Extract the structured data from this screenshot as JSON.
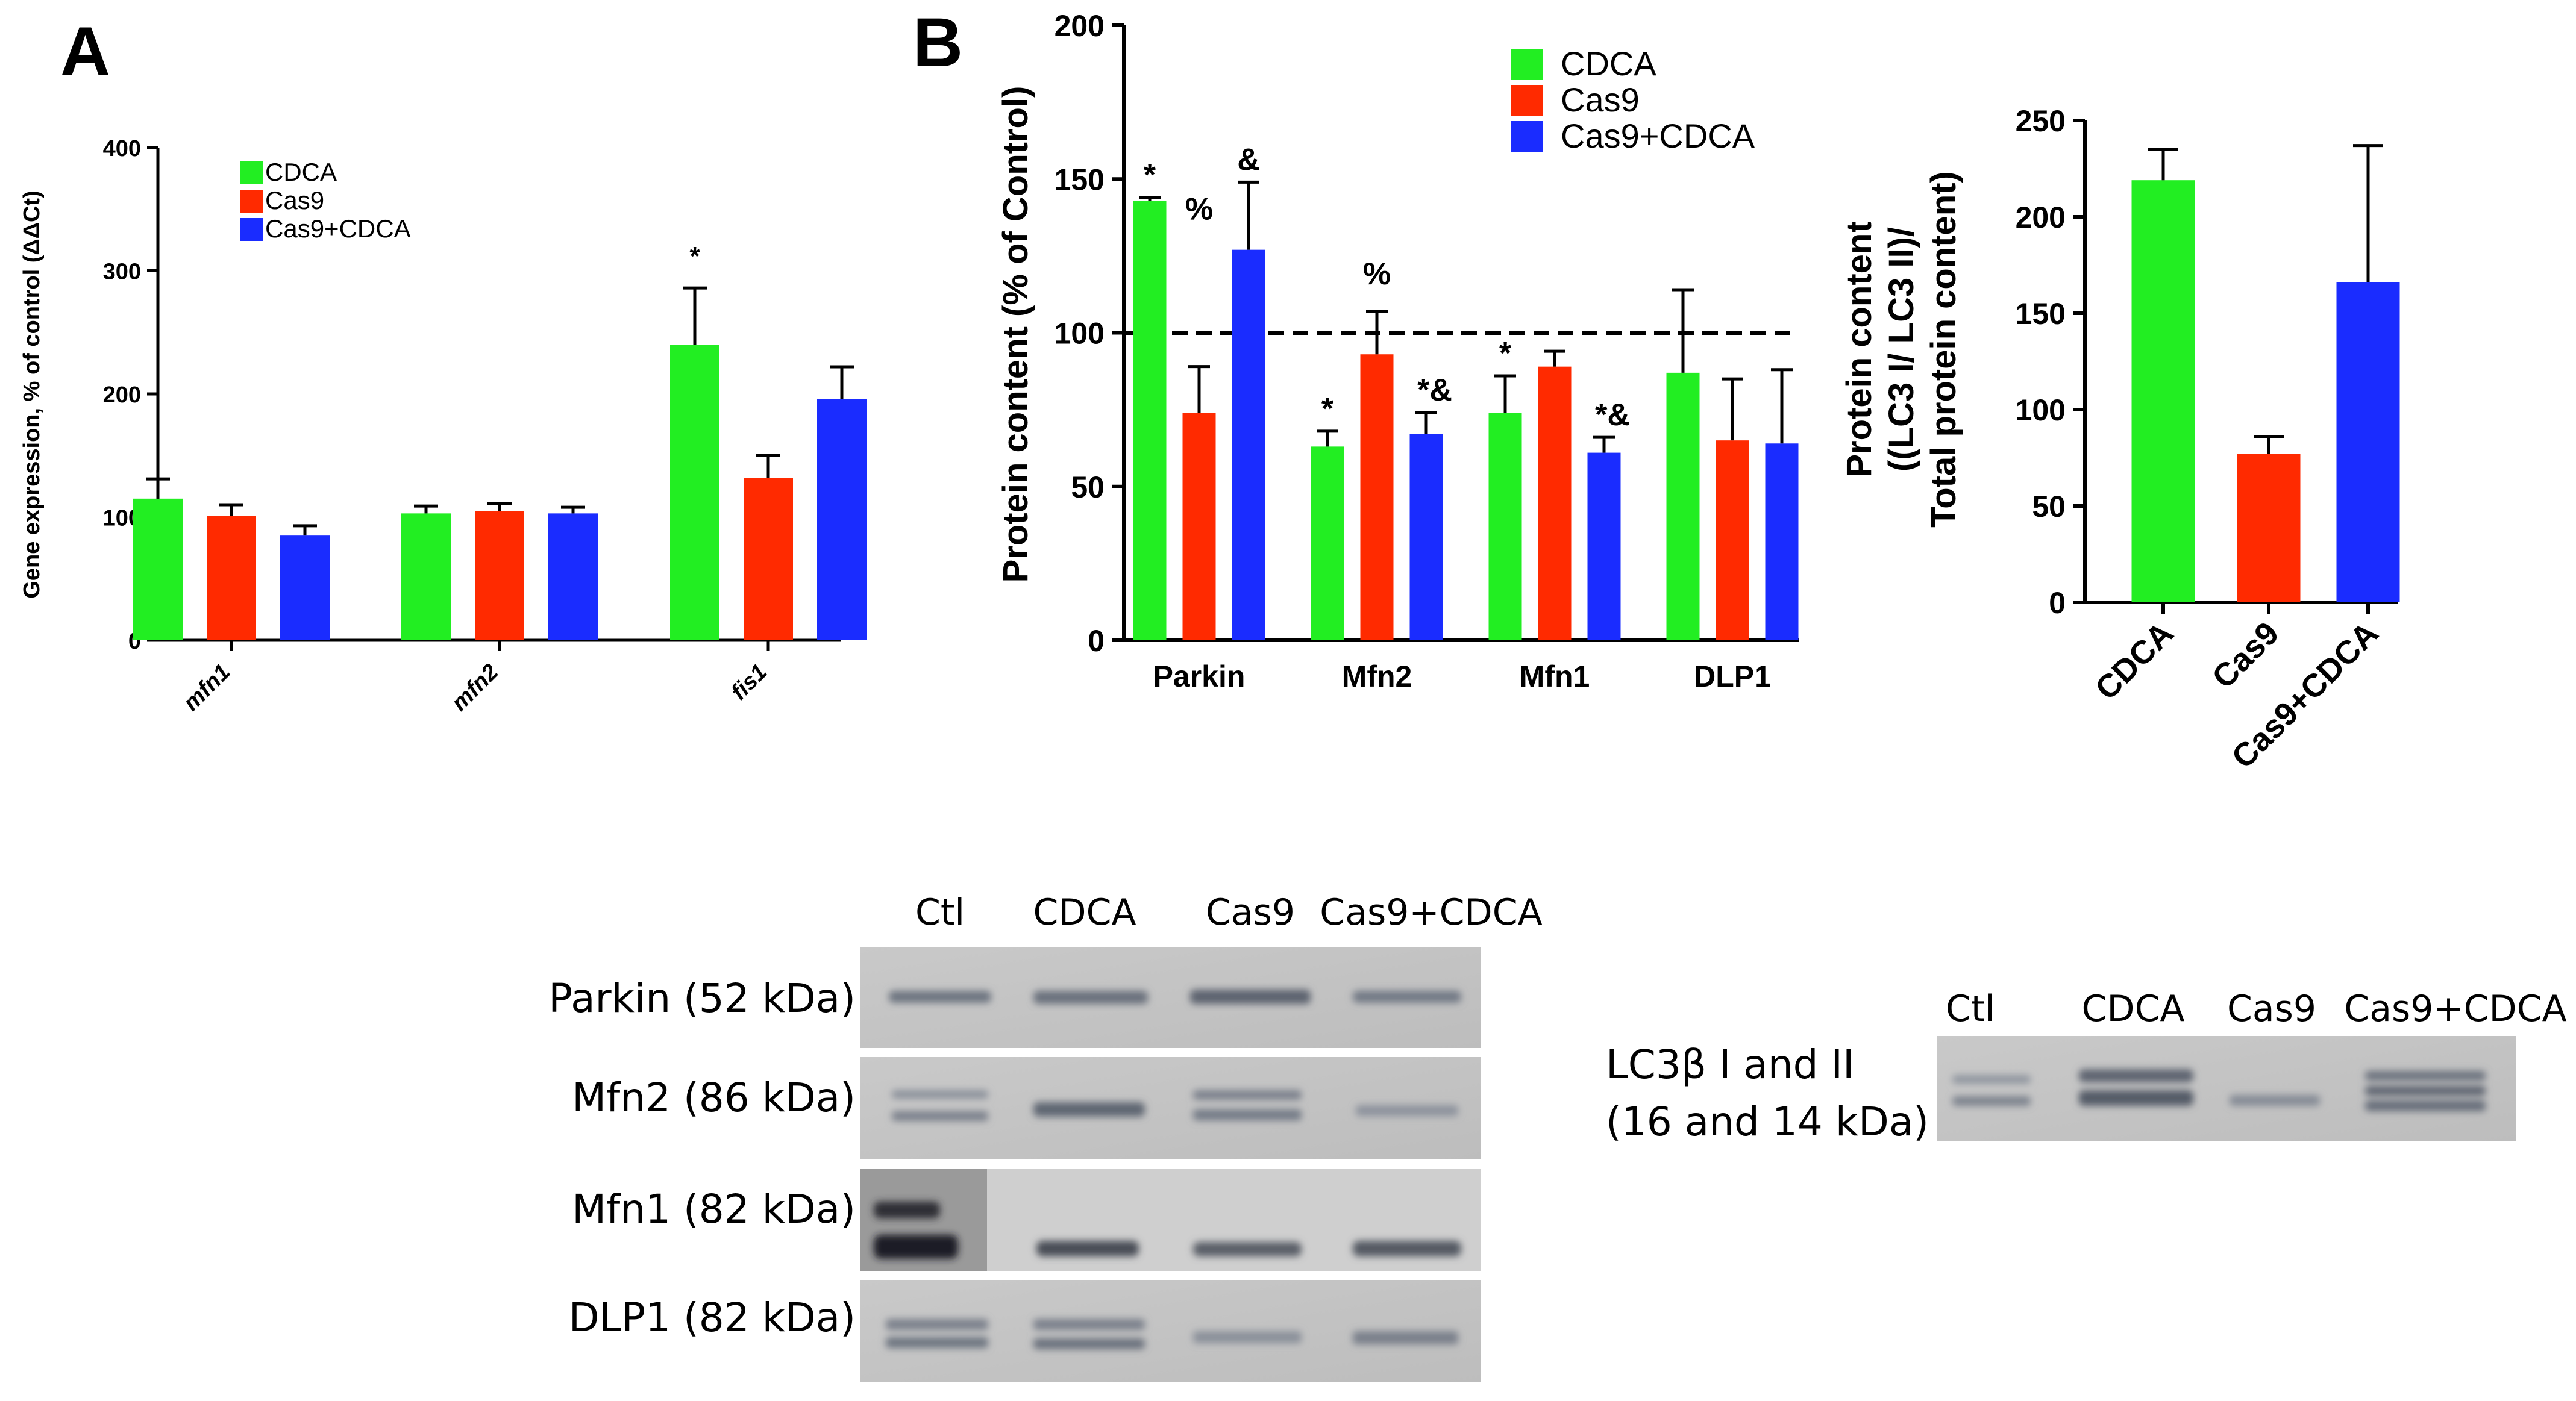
{
  "colors": {
    "CDCA": "#22ee22",
    "Cas9": "#ff2a00",
    "Cas9+CDCA": "#1a2cff"
  },
  "panel_labels": {
    "a": "A",
    "b": "B"
  },
  "chart_data": [
    {
      "id": "chartA",
      "type": "bar",
      "title": "",
      "ylabel": "Gene expression, % of control (ΔΔCt)",
      "xlabel": "",
      "ylim": [
        0,
        400
      ],
      "yticks": [
        0,
        100,
        200,
        300,
        400
      ],
      "categories": [
        "mfn1",
        "mfn2",
        "fis1"
      ],
      "series": [
        {
          "name": "CDCA",
          "values": [
            115,
            103,
            240
          ],
          "errors": [
            16,
            6,
            46
          ]
        },
        {
          "name": "Cas9",
          "values": [
            101,
            105,
            132
          ],
          "errors": [
            9,
            6,
            18
          ]
        },
        {
          "name": "Cas9+CDCA",
          "values": [
            85,
            103,
            196
          ],
          "errors": [
            8,
            5,
            26
          ]
        }
      ],
      "annotations": [
        {
          "category": "fis1",
          "series": "CDCA",
          "text": "*"
        }
      ],
      "legend": [
        "CDCA",
        "Cas9",
        "Cas9+CDCA"
      ],
      "legend_position": "top-left"
    },
    {
      "id": "chartB",
      "type": "bar",
      "title": "",
      "ylabel": "Protein content (% of Control)",
      "xlabel": "",
      "ylim": [
        0,
        200
      ],
      "yticks": [
        0,
        50,
        100,
        150,
        200
      ],
      "reference_line": 100,
      "categories": [
        "Parkin",
        "Mfn2",
        "Mfn1",
        "DLP1"
      ],
      "series": [
        {
          "name": "CDCA",
          "values": [
            143,
            63,
            74,
            87
          ],
          "errors": [
            1,
            5,
            12,
            27
          ]
        },
        {
          "name": "Cas9",
          "values": [
            74,
            93,
            89,
            65
          ],
          "errors": [
            15,
            14,
            5,
            20
          ]
        },
        {
          "name": "Cas9+CDCA",
          "values": [
            127,
            67,
            61,
            64
          ],
          "errors": [
            22,
            7,
            5,
            24
          ]
        }
      ],
      "annotations": [
        {
          "category": "Parkin",
          "series": "CDCA",
          "text": "*"
        },
        {
          "category": "Parkin",
          "series": "Cas9",
          "text": "%"
        },
        {
          "category": "Parkin",
          "series": "Cas9+CDCA",
          "text": "&"
        },
        {
          "category": "Mfn2",
          "series": "CDCA",
          "text": "*"
        },
        {
          "category": "Mfn2",
          "series": "Cas9",
          "text": "%"
        },
        {
          "category": "Mfn2",
          "series": "Cas9+CDCA",
          "text": "*&"
        },
        {
          "category": "Mfn1",
          "series": "CDCA",
          "text": "*"
        },
        {
          "category": "Mfn1",
          "series": "Cas9+CDCA",
          "text": "*&"
        }
      ],
      "legend": [
        "CDCA",
        "Cas9",
        "Cas9+CDCA"
      ],
      "legend_position": "top-right"
    },
    {
      "id": "chartC",
      "type": "bar",
      "title": "",
      "ylabel": [
        "Protein content",
        "((LC3 I/ LC3 II)/",
        "Total protein content)"
      ],
      "xlabel": "",
      "ylim": [
        0,
        250
      ],
      "yticks": [
        0,
        50,
        100,
        150,
        200,
        250
      ],
      "categories": [
        "CDCA",
        "Cas9",
        "Cas9+CDCA"
      ],
      "values": [
        219,
        77,
        166
      ],
      "errors": [
        16,
        9,
        71
      ]
    }
  ],
  "blot_main": {
    "lanes": [
      "Ctl",
      "CDCA",
      "Cas9",
      "Cas9+CDCA"
    ],
    "rows": [
      "Parkin (52 kDa)",
      "Mfn2 (86 kDa)",
      "Mfn1 (82 kDa)",
      "DLP1 (82 kDa)"
    ]
  },
  "blot_lc3": {
    "lanes": [
      "Ctl",
      "CDCA",
      "Cas9",
      "Cas9+CDCA"
    ],
    "label_lines": [
      "LC3β I and II",
      "(16 and 14 kDa)"
    ]
  }
}
